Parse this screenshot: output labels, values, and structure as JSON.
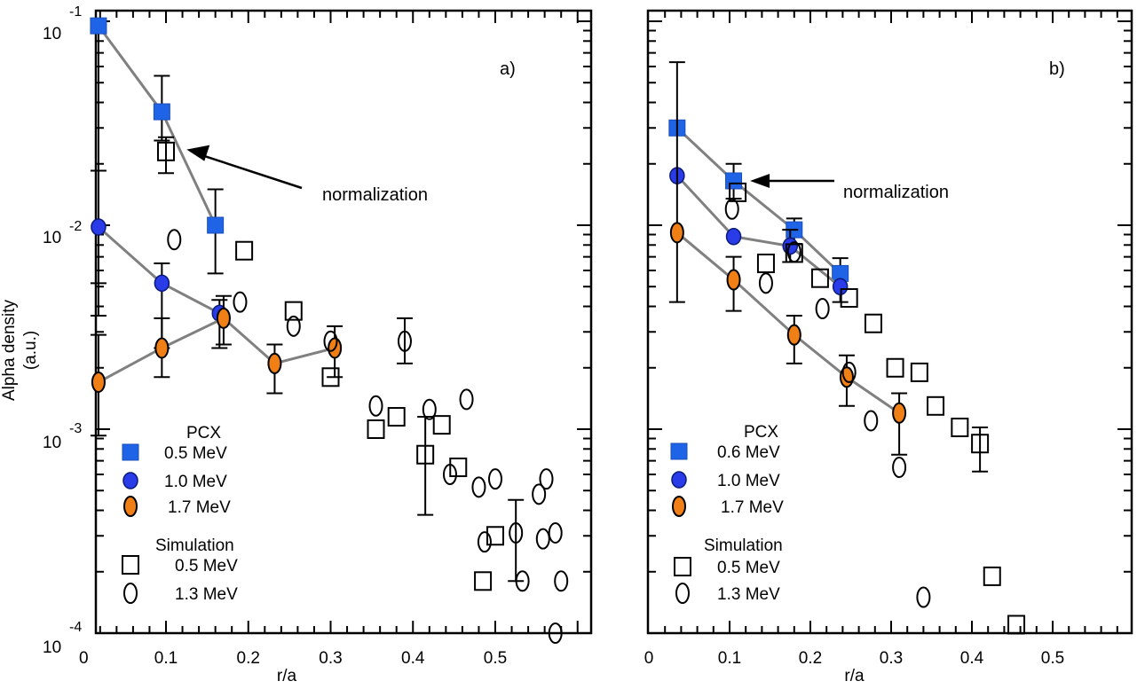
{
  "colors": {
    "pcx_low": "#1f63e6",
    "pcx_mid_fill": "#2a3ce8",
    "pcx_high_fill": "#f07f16",
    "line": "#808080",
    "axis": "#000000"
  },
  "chart_data": [
    {
      "type": "scatter",
      "panel_label": "a)",
      "ylabel": "Alpha density",
      "ylabel_units": "(a.u.)",
      "xlabel": "r/a",
      "y_scale": "log",
      "xlim": [
        -0.02,
        0.6
      ],
      "ylim": [
        0.0001,
        0.1
      ],
      "x_ticks": [
        "0",
        "0.1",
        "0.2",
        "0.3",
        "0.4",
        "0.5"
      ],
      "y_ticks": [
        {
          "base": "10",
          "exp": "-1"
        },
        {
          "base": "10",
          "exp": "-2"
        },
        {
          "base": "10",
          "exp": "-3"
        },
        {
          "base": "10",
          "exp": "-4"
        }
      ],
      "annotation": {
        "text": "normalization",
        "target": [
          0.11,
          0.0235
        ]
      },
      "legend": {
        "pcx_title": "PCX",
        "pcx_items": [
          "0.5 MeV",
          "1.0 MeV",
          "1.7 MeV"
        ],
        "sim_title": "Simulation",
        "sim_items": [
          "0.5 MeV",
          "1.3 MeV"
        ]
      },
      "series": [
        {
          "name": "0.5 MeV",
          "group": "PCX",
          "marker": "square",
          "connected": true,
          "x": [
            0.018,
            0.095,
            0.16
          ],
          "y": [
            0.095,
            0.036,
            0.01
          ],
          "err_low": [
            0.0052,
            0.026,
            0.0058
          ],
          "err_high": [
            0.1,
            0.054,
            0.015
          ]
        },
        {
          "name": "1.0 MeV",
          "group": "PCX",
          "marker": "round",
          "connected": true,
          "x": [
            0.018,
            0.095,
            0.165
          ],
          "y": [
            0.0098,
            0.0052,
            0.0037
          ],
          "err_low": [
            0.0036,
            0.0025,
            0.0025
          ],
          "err_high": [
            0.0185,
            0.0065,
            0.0043
          ]
        },
        {
          "name": "1.7 MeV",
          "group": "PCX",
          "marker": "oval",
          "connected": true,
          "x": [
            0.018,
            0.095,
            0.17,
            0.232,
            0.305
          ],
          "y": [
            0.0017,
            0.0025,
            0.0035,
            0.0021,
            0.0025
          ],
          "err_low": [
            0.00093,
            0.0018,
            0.0026,
            0.0015,
            0.0018
          ],
          "err_high": [
            0.0029,
            0.0035,
            0.0045,
            0.0026,
            0.0032
          ]
        },
        {
          "name": "0.5 MeV",
          "group": "Simulation",
          "marker": "open-square",
          "connected": false,
          "x": [
            0.1,
            0.195,
            0.255,
            0.3,
            0.355,
            0.38,
            0.415,
            0.435,
            0.455,
            0.485,
            0.5
          ],
          "y": [
            0.023,
            0.0075,
            0.0038,
            0.0018,
            0.001,
            0.00115,
            0.00075,
            0.00105,
            0.00065,
            0.00018,
            0.0003
          ],
          "err_low": [
            0.018,
            null,
            null,
            null,
            null,
            null,
            0.00038,
            null,
            null,
            null,
            null
          ],
          "err_high": [
            0.027,
            null,
            null,
            null,
            null,
            null,
            0.00115,
            null,
            null,
            null,
            null
          ]
        },
        {
          "name": "1.3 MeV",
          "group": "Simulation",
          "marker": "open-circle",
          "connected": false,
          "x": [
            0.11,
            0.19,
            0.255,
            0.3,
            0.355,
            0.39,
            0.42,
            0.445,
            0.465,
            0.48,
            0.487,
            0.5,
            0.525,
            0.533,
            0.553,
            0.558,
            0.562,
            0.573,
            0.58,
            0.573
          ],
          "y": [
            0.0085,
            0.0042,
            0.0032,
            0.0027,
            0.0013,
            0.0027,
            0.00125,
            0.0006,
            0.0014,
            0.00052,
            0.00028,
            0.00057,
            0.00031,
            0.00018,
            0.00048,
            0.00029,
            0.00057,
            0.00031,
            0.00018,
            0.0001
          ],
          "err_low": [
            null,
            null,
            null,
            null,
            null,
            0.0021,
            null,
            null,
            null,
            null,
            null,
            null,
            0.00018,
            null,
            null,
            null,
            null,
            null,
            null,
            null
          ],
          "err_high": [
            null,
            null,
            null,
            null,
            null,
            0.0035,
            null,
            null,
            null,
            null,
            null,
            null,
            0.00045,
            null,
            null,
            null,
            null,
            null,
            null,
            null
          ]
        }
      ]
    },
    {
      "type": "scatter",
      "panel_label": "b)",
      "xlabel": "r/a",
      "y_scale": "log",
      "xlim": [
        0.0,
        0.6
      ],
      "ylim": [
        0.0001,
        0.1
      ],
      "x_ticks": [
        "0",
        "0.1",
        "0.2",
        "0.3",
        "0.4",
        "0.5"
      ],
      "annotation": {
        "text": "normalization",
        "target": [
          0.11,
          0.0165
        ]
      },
      "legend": {
        "pcx_title": "PCX",
        "pcx_items": [
          "0.6 MeV",
          "1.0 MeV",
          "1.7 MeV"
        ],
        "sim_title": "Simulation",
        "sim_items": [
          "0.5 MeV",
          "1.3 MeV"
        ]
      },
      "series": [
        {
          "name": "0.6 MeV",
          "group": "PCX",
          "marker": "square",
          "connected": true,
          "x": [
            0.035,
            0.105,
            0.18,
            0.237
          ],
          "y": [
            0.03,
            0.0165,
            0.0095,
            0.0058
          ],
          "err_low": [
            null,
            0.0135,
            0.0081,
            0.0042
          ],
          "err_high": [
            null,
            0.02,
            0.0108,
            0.0069
          ]
        },
        {
          "name": "1.0 MeV",
          "group": "PCX",
          "marker": "round",
          "connected": true,
          "x": [
            0.035,
            0.105,
            0.175,
            0.237
          ],
          "y": [
            0.0175,
            0.0088,
            0.0079,
            0.005
          ],
          "err_low": [
            null,
            null,
            0.0066,
            null
          ],
          "err_high": [
            null,
            null,
            0.0095,
            null
          ]
        },
        {
          "name": "1.7 MeV",
          "group": "PCX",
          "marker": "oval",
          "connected": true,
          "x": [
            0.035,
            0.105,
            0.18,
            0.245,
            0.31
          ],
          "y": [
            0.0092,
            0.0054,
            0.0029,
            0.0018,
            0.0012
          ],
          "err_low": [
            0.0042,
            0.0038,
            0.0021,
            0.0013,
            0.00075
          ],
          "err_high": [
            0.063,
            0.007,
            0.0036,
            0.0023,
            0.0015
          ]
        },
        {
          "name": "0.5 MeV",
          "group": "Simulation",
          "marker": "open-square",
          "connected": false,
          "x": [
            0.11,
            0.145,
            0.18,
            0.212,
            0.248,
            0.278,
            0.305,
            0.335,
            0.355,
            0.385,
            0.41,
            0.425,
            0.455
          ],
          "y": [
            0.0145,
            0.0065,
            0.0073,
            0.0055,
            0.0044,
            0.0033,
            0.002,
            0.0019,
            0.0013,
            0.00102,
            0.00085,
            0.00019,
            0.00011
          ],
          "err_low": [
            null,
            null,
            null,
            null,
            null,
            null,
            null,
            null,
            null,
            null,
            0.00062,
            null,
            null
          ],
          "err_high": [
            null,
            null,
            null,
            null,
            null,
            null,
            null,
            null,
            null,
            null,
            0.00102,
            null,
            null
          ]
        },
        {
          "name": "1.3 MeV",
          "group": "Simulation",
          "marker": "open-circle",
          "connected": false,
          "x": [
            0.103,
            0.145,
            0.18,
            0.215,
            0.248,
            0.275,
            0.31,
            0.34
          ],
          "y": [
            0.012,
            0.0052,
            0.0074,
            0.0039,
            0.0019,
            0.0011,
            0.00065,
            0.00015
          ]
        }
      ]
    }
  ]
}
